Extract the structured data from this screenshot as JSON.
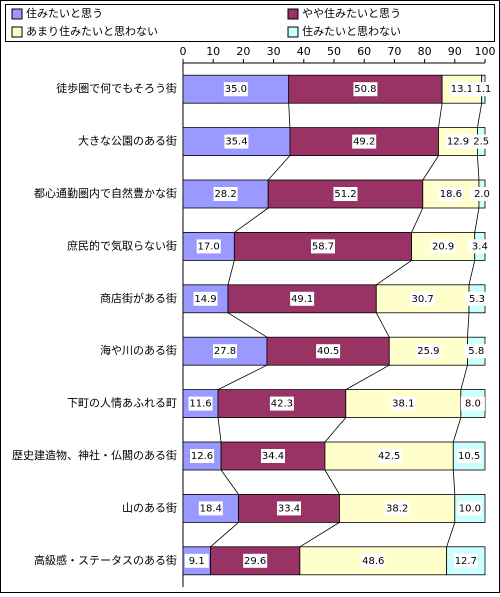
{
  "chart_data": {
    "type": "stacked-bar-horizontal",
    "categories": [
      "徒歩圏で何でもそろう街",
      "大きな公園のある街",
      "都心通勤圏内で自然豊かな街",
      "庶民的で気取らない街",
      "商店街がある街",
      "海や川のある街",
      "下町の人情あふれる町",
      "歴史建造物、神社・仏閣のある街",
      "山のある街",
      "高級感・ステータスのある街"
    ],
    "series": [
      {
        "name": "住みたいと思う",
        "color": "#9999ff",
        "values": [
          35.0,
          35.4,
          28.2,
          17.0,
          14.9,
          27.8,
          11.6,
          12.6,
          18.4,
          9.1
        ],
        "value_labels": [
          "35.0",
          "35.4",
          "28.2",
          "17.0",
          "14.9",
          "27.8",
          "11.6",
          "12.6",
          "18.4",
          "9.1"
        ]
      },
      {
        "name": "やや住みたいと思う",
        "color": "#993366",
        "values": [
          50.8,
          49.2,
          51.2,
          58.7,
          49.1,
          40.5,
          42.3,
          34.4,
          33.4,
          29.6
        ],
        "value_labels": [
          "50.8",
          "49.2",
          "51.2",
          "58.7",
          "49.1",
          "40.5",
          "42.3",
          "34.4",
          "33.4",
          "29.6"
        ]
      },
      {
        "name": "あまり住みたいと思わない",
        "color": "#ffffcc",
        "values": [
          13.1,
          12.9,
          18.6,
          20.9,
          30.7,
          25.9,
          38.1,
          42.5,
          38.2,
          48.6
        ],
        "value_labels": [
          "13.1",
          "12.9",
          "18.6",
          "20.9",
          "30.7",
          "25.9",
          "38.1",
          "42.5",
          "38.2",
          "48.6"
        ]
      },
      {
        "name": "住みたいと思わない",
        "color": "#ccffff",
        "values": [
          1.1,
          2.5,
          2.0,
          3.4,
          5.3,
          5.8,
          8.0,
          10.5,
          10.0,
          12.7
        ],
        "value_labels": [
          "1.1",
          "2.5",
          "2.0",
          "3.4",
          "5.3",
          "5.8",
          "8.0",
          "10.5",
          "10.0",
          "12.7"
        ]
      }
    ],
    "xlim": [
      0,
      100
    ],
    "xticks": [
      0,
      10,
      20,
      30,
      40,
      50,
      60,
      70,
      80,
      90,
      100
    ]
  }
}
